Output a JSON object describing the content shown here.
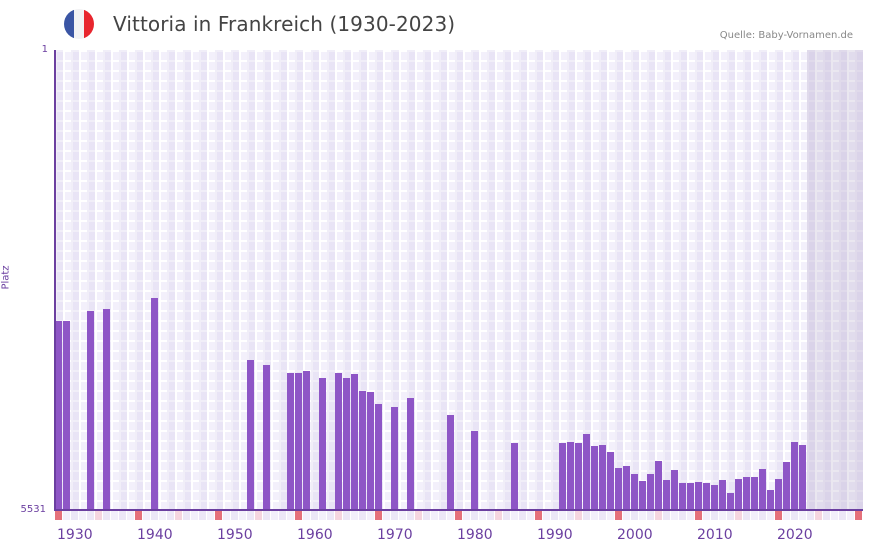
{
  "header": {
    "title": "Vittoria in Frankreich (1930-2023)",
    "source": "Quelle: Baby-Vornamen.de",
    "flag_colors": [
      "#3a55a4",
      "#f2f2f4",
      "#e8262e"
    ]
  },
  "colors": {
    "bar": "#8e56c6",
    "axis": "#6b3fa0",
    "decade_marker": "#e5717b",
    "half_decade_marker": "#f5d5df"
  },
  "chart_data": {
    "type": "bar",
    "title": "Vittoria in Frankreich (1930-2023)",
    "xlabel": "",
    "ylabel": "Platz",
    "y_inverted": true,
    "ylim": [
      5531,
      1
    ],
    "xlim": [
      1930,
      2030
    ],
    "x_tick_labels": [
      "1930",
      "1940",
      "1950",
      "1960",
      "1970",
      "1980",
      "1990",
      "2000",
      "2010",
      "2020"
    ],
    "y_tick_labels": [
      "1",
      "5531"
    ],
    "grid": true,
    "shaded_future_from": 2024,
    "x": [
      1930,
      1931,
      1934,
      1936,
      1942,
      1954,
      1956,
      1959,
      1960,
      1961,
      1963,
      1965,
      1966,
      1967,
      1968,
      1969,
      1970,
      1972,
      1974,
      1979,
      1982,
      1987,
      1993,
      1994,
      1995,
      1996,
      1997,
      1998,
      1999,
      2000,
      2001,
      2002,
      2003,
      2004,
      2005,
      2006,
      2007,
      2008,
      2009,
      2010,
      2011,
      2012,
      2013,
      2014,
      2015,
      2016,
      2017,
      2018,
      2019,
      2020,
      2021,
      2022,
      2023
    ],
    "values": [
      3262,
      3262,
      3142,
      3118,
      2985,
      3731,
      3791,
      3887,
      3887,
      3863,
      3948,
      3887,
      3948,
      3900,
      4104,
      4116,
      4260,
      4297,
      4188,
      4393,
      4585,
      4730,
      4730,
      4718,
      4730,
      4622,
      4766,
      4754,
      4838,
      5031,
      5007,
      5103,
      5187,
      5103,
      4947,
      5175,
      5055,
      5211,
      5211,
      5199,
      5211,
      5235,
      5175,
      5331,
      5163,
      5139,
      5139,
      5043,
      5295,
      5163,
      4959,
      4718,
      4754
    ]
  },
  "axis": {
    "y_top_label": "1",
    "y_bottom_label": "5531",
    "y_title": "Platz"
  }
}
